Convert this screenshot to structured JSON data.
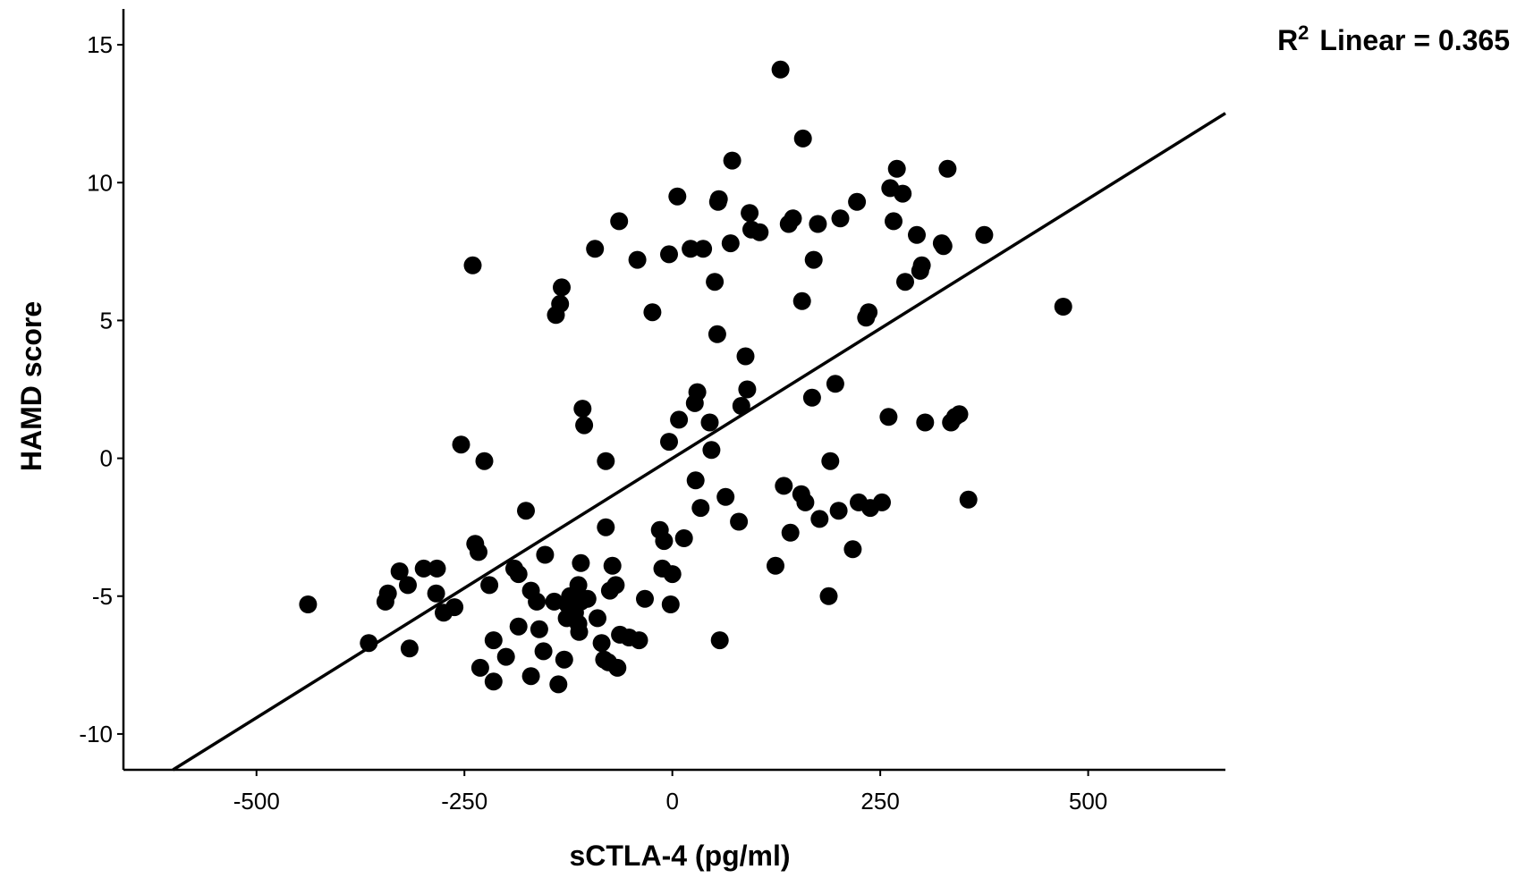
{
  "chart_data": {
    "type": "scatter",
    "xlabel": "sCTLA-4 (pg/ml)",
    "ylabel": "HAMD score",
    "annotation": {
      "base": "R",
      "sup": "2",
      "rest": "Linear = 0.365"
    },
    "xlim": [
      -660,
      665
    ],
    "ylim": [
      -11.3,
      16.3
    ],
    "x_ticks": [
      -500,
      -250,
      0,
      250,
      500
    ],
    "x_tick_labels": [
      "-500",
      "-250",
      "0",
      "250",
      "500"
    ],
    "y_ticks": [
      -10,
      -5,
      0,
      5,
      10,
      15
    ],
    "y_tick_labels": [
      "-10",
      "-5",
      "0",
      "5",
      "10",
      "15"
    ],
    "fit_line": {
      "slope": 0.01882,
      "intercept": 0.0
    },
    "grid": false,
    "legend": false,
    "colors": {
      "points": "#000000",
      "line": "#000000",
      "axis": "#000000"
    },
    "points": [
      [
        -438,
        -5.3
      ],
      [
        -365,
        -6.7
      ],
      [
        -345,
        -5.2
      ],
      [
        -342,
        -4.9
      ],
      [
        -328,
        -4.1
      ],
      [
        -316,
        -6.9
      ],
      [
        -318,
        -4.6
      ],
      [
        -299,
        -4.0
      ],
      [
        -283,
        -4.0
      ],
      [
        -284,
        -4.9
      ],
      [
        -275,
        -5.6
      ],
      [
        -262,
        -5.4
      ],
      [
        -254,
        0.5
      ],
      [
        -240,
        7.0
      ],
      [
        -237,
        -3.1
      ],
      [
        -233,
        -3.4
      ],
      [
        -231,
        -7.6
      ],
      [
        -226,
        -0.1
      ],
      [
        -220,
        -4.6
      ],
      [
        -215,
        -8.1
      ],
      [
        -215,
        -6.6
      ],
      [
        -200,
        -7.2
      ],
      [
        -190,
        -4.0
      ],
      [
        -185,
        -4.2
      ],
      [
        -185,
        -6.1
      ],
      [
        -176,
        -1.9
      ],
      [
        -170,
        -4.8
      ],
      [
        -170,
        -7.9
      ],
      [
        -163,
        -5.2
      ],
      [
        -160,
        -6.2
      ],
      [
        -155,
        -7.0
      ],
      [
        -153,
        -3.5
      ],
      [
        -142,
        -5.2
      ],
      [
        -140,
        5.2
      ],
      [
        -137,
        -8.2
      ],
      [
        -135,
        5.6
      ],
      [
        -133,
        6.2
      ],
      [
        -130,
        -7.3
      ],
      [
        -127,
        -5.8
      ],
      [
        -126,
        -5.3
      ],
      [
        -123,
        -5.0
      ],
      [
        -117,
        -5.6
      ],
      [
        -117,
        -5.0
      ],
      [
        -113,
        -6.0
      ],
      [
        -113,
        -4.6
      ],
      [
        -112,
        -6.3
      ],
      [
        -110,
        -3.8
      ],
      [
        -110,
        -5.2
      ],
      [
        -108,
        1.8
      ],
      [
        -106,
        1.2
      ],
      [
        -102,
        -5.1
      ],
      [
        -93,
        7.6
      ],
      [
        -90,
        -5.8
      ],
      [
        -85,
        -6.7
      ],
      [
        -82,
        -7.3
      ],
      [
        -80,
        -2.5
      ],
      [
        -80,
        -0.1
      ],
      [
        -77,
        -7.4
      ],
      [
        -75,
        -4.8
      ],
      [
        -72,
        -3.9
      ],
      [
        -68,
        -4.6
      ],
      [
        -66,
        -7.6
      ],
      [
        -64,
        8.6
      ],
      [
        -63,
        -6.4
      ],
      [
        -52,
        -6.5
      ],
      [
        -40,
        -6.6
      ],
      [
        -42,
        7.2
      ],
      [
        -33,
        -5.1
      ],
      [
        -24,
        5.3
      ],
      [
        -15,
        -2.6
      ],
      [
        -12,
        -4.0
      ],
      [
        -10,
        -3.0
      ],
      [
        -4,
        7.4
      ],
      [
        -4,
        0.6
      ],
      [
        -2,
        -5.3
      ],
      [
        0,
        -4.2
      ],
      [
        6,
        9.5
      ],
      [
        8,
        1.4
      ],
      [
        14,
        -2.9
      ],
      [
        22,
        7.6
      ],
      [
        27,
        2.0
      ],
      [
        28,
        -0.8
      ],
      [
        30,
        2.4
      ],
      [
        34,
        -1.8
      ],
      [
        37,
        7.6
      ],
      [
        45,
        1.3
      ],
      [
        47,
        0.3
      ],
      [
        51,
        6.4
      ],
      [
        54,
        4.5
      ],
      [
        55,
        9.3
      ],
      [
        56,
        9.4
      ],
      [
        57,
        -6.6
      ],
      [
        64,
        -1.4
      ],
      [
        70,
        7.8
      ],
      [
        72,
        10.8
      ],
      [
        80,
        -2.3
      ],
      [
        83,
        1.9
      ],
      [
        88,
        3.7
      ],
      [
        90,
        2.5
      ],
      [
        93,
        8.9
      ],
      [
        95,
        8.3
      ],
      [
        105,
        8.2
      ],
      [
        124,
        -3.9
      ],
      [
        130,
        14.1
      ],
      [
        134,
        -1.0
      ],
      [
        140,
        8.5
      ],
      [
        142,
        -2.7
      ],
      [
        145,
        8.7
      ],
      [
        155,
        -1.3
      ],
      [
        156,
        5.7
      ],
      [
        157,
        11.6
      ],
      [
        160,
        -1.6
      ],
      [
        168,
        2.2
      ],
      [
        170,
        7.2
      ],
      [
        175,
        8.5
      ],
      [
        177,
        -2.2
      ],
      [
        188,
        -5.0
      ],
      [
        190,
        -0.1
      ],
      [
        196,
        2.7
      ],
      [
        200,
        -1.9
      ],
      [
        202,
        8.7
      ],
      [
        217,
        -3.3
      ],
      [
        222,
        9.3
      ],
      [
        224,
        -1.6
      ],
      [
        233,
        5.1
      ],
      [
        236,
        5.3
      ],
      [
        238,
        -1.8
      ],
      [
        252,
        -1.6
      ],
      [
        260,
        1.5
      ],
      [
        262,
        9.8
      ],
      [
        266,
        8.6
      ],
      [
        270,
        10.5
      ],
      [
        277,
        9.6
      ],
      [
        280,
        6.4
      ],
      [
        294,
        8.1
      ],
      [
        298,
        6.8
      ],
      [
        300,
        7.0
      ],
      [
        304,
        1.3
      ],
      [
        324,
        7.8
      ],
      [
        326,
        7.7
      ],
      [
        331,
        10.5
      ],
      [
        335,
        1.3
      ],
      [
        340,
        1.5
      ],
      [
        345,
        1.6
      ],
      [
        356,
        -1.5
      ],
      [
        375,
        8.1
      ],
      [
        470,
        5.5
      ]
    ]
  }
}
